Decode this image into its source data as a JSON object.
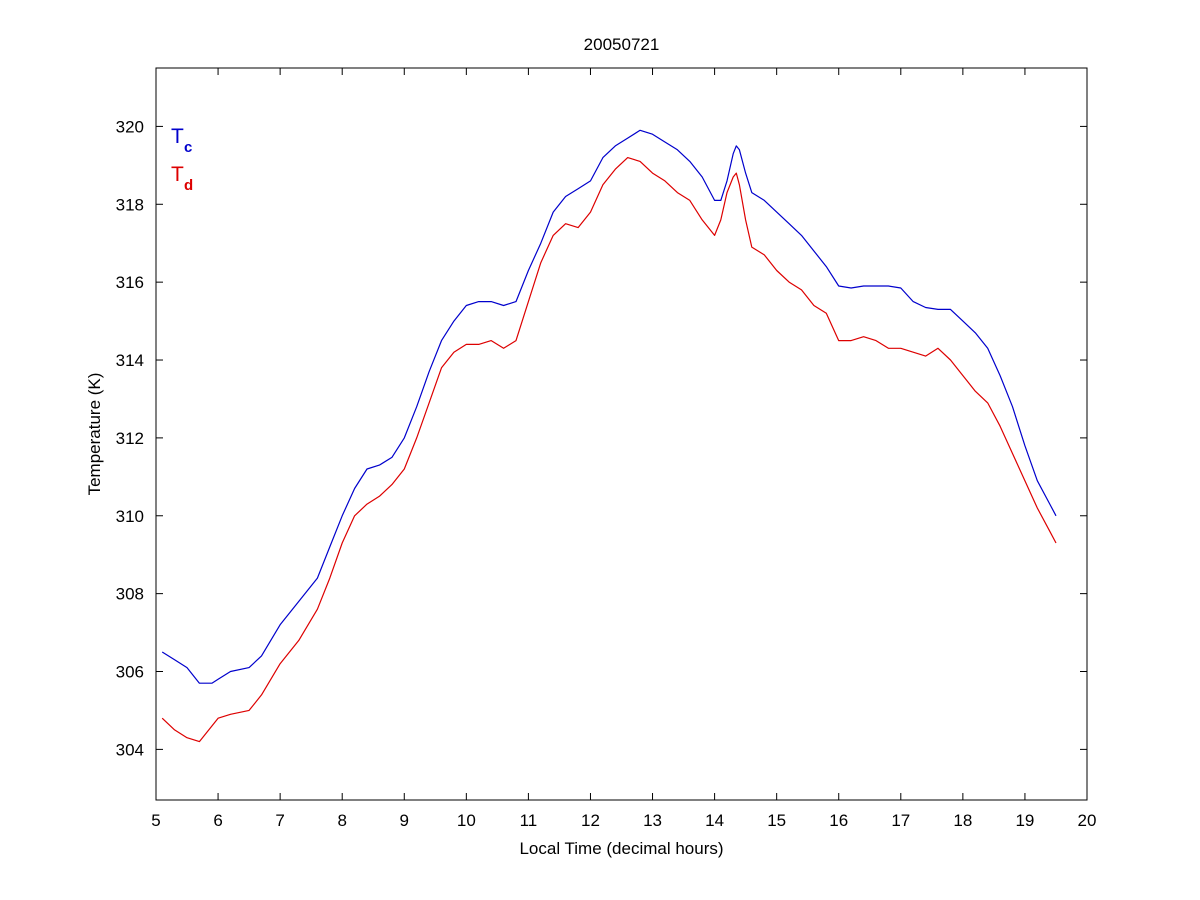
{
  "chart_data": {
    "type": "line",
    "title": "20050721",
    "xlabel": "Local Time (decimal hours)",
    "ylabel": "Temperature (K)",
    "xlim": [
      5,
      20
    ],
    "ylim": [
      302.7,
      321.5
    ],
    "xticks": [
      5,
      6,
      7,
      8,
      9,
      10,
      11,
      12,
      13,
      14,
      15,
      16,
      17,
      18,
      19,
      20
    ],
    "yticks": [
      304,
      306,
      308,
      310,
      312,
      314,
      316,
      318,
      320
    ],
    "grid": false,
    "legend_position": "top-left",
    "colors": {
      "Tc": "#0000cc",
      "Td": "#dd0000"
    },
    "legend": [
      {
        "main": "T",
        "sub": "c",
        "color": "#0000cc"
      },
      {
        "main": "T",
        "sub": "d",
        "color": "#dd0000"
      }
    ],
    "series": [
      {
        "name": "Tc",
        "color": "#0000cc",
        "x": [
          5.1,
          5.3,
          5.5,
          5.7,
          5.9,
          6.0,
          6.2,
          6.5,
          6.7,
          7.0,
          7.3,
          7.6,
          7.8,
          8.0,
          8.2,
          8.4,
          8.6,
          8.8,
          9.0,
          9.2,
          9.4,
          9.6,
          9.8,
          10.0,
          10.2,
          10.4,
          10.6,
          10.8,
          11.0,
          11.2,
          11.4,
          11.6,
          11.8,
          12.0,
          12.2,
          12.4,
          12.6,
          12.8,
          13.0,
          13.2,
          13.4,
          13.6,
          13.8,
          14.0,
          14.1,
          14.2,
          14.3,
          14.35,
          14.4,
          14.5,
          14.6,
          14.8,
          15.0,
          15.2,
          15.4,
          15.6,
          15.8,
          16.0,
          16.2,
          16.4,
          16.6,
          16.8,
          17.0,
          17.2,
          17.4,
          17.6,
          17.8,
          18.0,
          18.2,
          18.4,
          18.6,
          18.8,
          19.0,
          19.2,
          19.4,
          19.5
        ],
        "y": [
          306.5,
          306.3,
          306.1,
          305.7,
          305.7,
          305.8,
          306.0,
          306.1,
          306.4,
          307.2,
          307.8,
          308.4,
          309.2,
          310.0,
          310.7,
          311.2,
          311.3,
          311.5,
          312.0,
          312.8,
          313.7,
          314.5,
          315.0,
          315.4,
          315.5,
          315.5,
          315.4,
          315.5,
          316.3,
          317.0,
          317.8,
          318.2,
          318.4,
          318.6,
          319.2,
          319.5,
          319.7,
          319.9,
          319.8,
          319.6,
          319.4,
          319.1,
          318.7,
          318.1,
          318.1,
          318.6,
          319.3,
          319.5,
          319.4,
          318.8,
          318.3,
          318.1,
          317.8,
          317.5,
          317.2,
          316.8,
          316.4,
          315.9,
          315.85,
          315.9,
          315.9,
          315.9,
          315.85,
          315.5,
          315.35,
          315.3,
          315.3,
          315.0,
          314.7,
          314.3,
          313.6,
          312.8,
          311.8,
          310.9,
          310.3,
          310.0
        ]
      },
      {
        "name": "Td",
        "color": "#dd0000",
        "x": [
          5.1,
          5.3,
          5.5,
          5.7,
          5.9,
          6.0,
          6.2,
          6.5,
          6.7,
          7.0,
          7.3,
          7.6,
          7.8,
          8.0,
          8.2,
          8.4,
          8.6,
          8.8,
          9.0,
          9.2,
          9.4,
          9.6,
          9.8,
          10.0,
          10.2,
          10.4,
          10.6,
          10.8,
          11.0,
          11.2,
          11.4,
          11.6,
          11.8,
          12.0,
          12.2,
          12.4,
          12.6,
          12.8,
          13.0,
          13.2,
          13.4,
          13.6,
          13.8,
          14.0,
          14.1,
          14.2,
          14.3,
          14.35,
          14.4,
          14.5,
          14.6,
          14.8,
          15.0,
          15.2,
          15.4,
          15.6,
          15.8,
          16.0,
          16.2,
          16.4,
          16.6,
          16.8,
          17.0,
          17.2,
          17.4,
          17.6,
          17.8,
          18.0,
          18.2,
          18.4,
          18.6,
          18.8,
          19.0,
          19.2,
          19.4,
          19.5
        ],
        "y": [
          304.8,
          304.5,
          304.3,
          304.2,
          304.6,
          304.8,
          304.9,
          305.0,
          305.4,
          306.2,
          306.8,
          307.6,
          308.4,
          309.3,
          310.0,
          310.3,
          310.5,
          310.8,
          311.2,
          312.0,
          312.9,
          313.8,
          314.2,
          314.4,
          314.4,
          314.5,
          314.3,
          314.5,
          315.5,
          316.5,
          317.2,
          317.5,
          317.4,
          317.8,
          318.5,
          318.9,
          319.2,
          319.1,
          318.8,
          318.6,
          318.3,
          318.1,
          317.6,
          317.2,
          317.6,
          318.3,
          318.7,
          318.8,
          318.5,
          317.6,
          316.9,
          316.7,
          316.3,
          316.0,
          315.8,
          315.4,
          315.2,
          314.5,
          314.5,
          314.6,
          314.5,
          314.3,
          314.3,
          314.2,
          314.1,
          314.3,
          314.0,
          313.6,
          313.2,
          312.9,
          312.3,
          311.6,
          310.9,
          310.2,
          309.6,
          309.3
        ]
      }
    ]
  }
}
